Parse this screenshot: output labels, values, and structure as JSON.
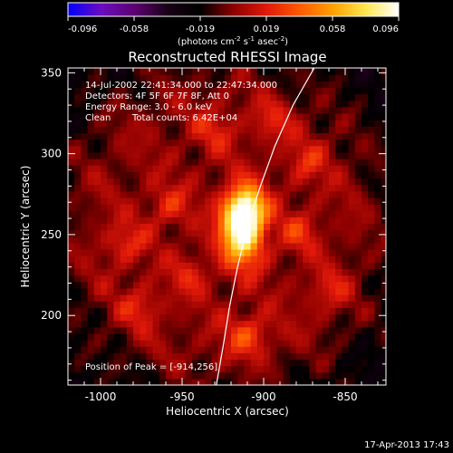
{
  "chart_data": {
    "type": "heatmap",
    "title": "Reconstructed RHESSI Image",
    "xlabel": "Heliocentric X (arcsec)",
    "ylabel": "Heliocentric Y (arcsec)",
    "colorbar": {
      "ticks": [
        "-0.096",
        "-0.058",
        "-0.019",
        "0.019",
        "0.058",
        "0.096"
      ],
      "range": [
        -0.096,
        0.096
      ],
      "unit_prefix": "(photons cm",
      "unit_exp1": "-2",
      "unit_mid": " s",
      "unit_exp2": "-1",
      "unit_mid2": " asec",
      "unit_exp3": "-2",
      "unit_suffix": ")",
      "stops": [
        "#0000ff",
        "#6c0cbf",
        "#5e0073",
        "#1a0018",
        "#000000",
        "#8c0000",
        "#e1180a",
        "#ff5a00",
        "#ffa000",
        "#ffe650",
        "#ffffff"
      ]
    },
    "xaxis": {
      "range": [
        -1020,
        -825
      ],
      "ticks": [
        -1000,
        -950,
        -900,
        -850
      ],
      "tick_labels": [
        "-1000",
        "-950",
        "-900",
        "-850"
      ]
    },
    "yaxis": {
      "range": [
        157,
        353
      ],
      "ticks": [
        200,
        250,
        300,
        350
      ],
      "tick_labels": [
        "200",
        "250",
        "300",
        "350"
      ]
    },
    "peak": [
      -914,
      256
    ],
    "limb_curve": [
      [
        -929,
        157
      ],
      [
        -925,
        180
      ],
      [
        -921,
        205
      ],
      [
        -916,
        230
      ],
      [
        -910,
        255
      ],
      [
        -902,
        280
      ],
      [
        -893,
        305
      ],
      [
        -882,
        330
      ],
      [
        -869,
        353
      ]
    ],
    "sources": [
      {
        "x": -913,
        "y": 255,
        "amp": 0.11,
        "sx": 9,
        "sy": 15
      },
      {
        "x": -910,
        "y": 268,
        "amp": 0.04,
        "sx": 8,
        "sy": 8
      },
      {
        "x": -910,
        "y": 188,
        "amp": 0.03,
        "sx": 10,
        "sy": 9
      },
      {
        "x": -985,
        "y": 245,
        "amp": 0.022,
        "sx": 9,
        "sy": 9
      },
      {
        "x": -958,
        "y": 268,
        "amp": 0.022,
        "sx": 9,
        "sy": 9
      },
      {
        "x": -878,
        "y": 252,
        "amp": 0.022,
        "sx": 9,
        "sy": 9
      },
      {
        "x": -873,
        "y": 295,
        "amp": 0.02,
        "sx": 9,
        "sy": 9
      },
      {
        "x": -930,
        "y": 315,
        "amp": 0.02,
        "sx": 9,
        "sy": 9
      },
      {
        "x": -975,
        "y": 205,
        "amp": 0.02,
        "sx": 9,
        "sy": 9
      },
      {
        "x": -860,
        "y": 215,
        "amp": 0.018,
        "sx": 9,
        "sy": 9
      },
      {
        "x": -945,
        "y": 225,
        "amp": 0.018,
        "sx": 9,
        "sy": 9
      },
      {
        "x": -895,
        "y": 320,
        "amp": 0.018,
        "sx": 9,
        "sy": 9
      }
    ]
  },
  "annotations": {
    "time_range": "14-Jul-2002 22:41:34.000 to 22:47:34.000",
    "detectors": "Detectors: 4F 5F 6F 7F 8F, Att 0",
    "energy_range": "Energy Range: 3.0 - 6.0 keV",
    "clean_label": "Clean",
    "total_counts": "Total counts: 6.42E+04",
    "peak_position": "Position of Peak = [-914,256]"
  },
  "footer": {
    "date": "17-Apr-2013 17:43"
  }
}
